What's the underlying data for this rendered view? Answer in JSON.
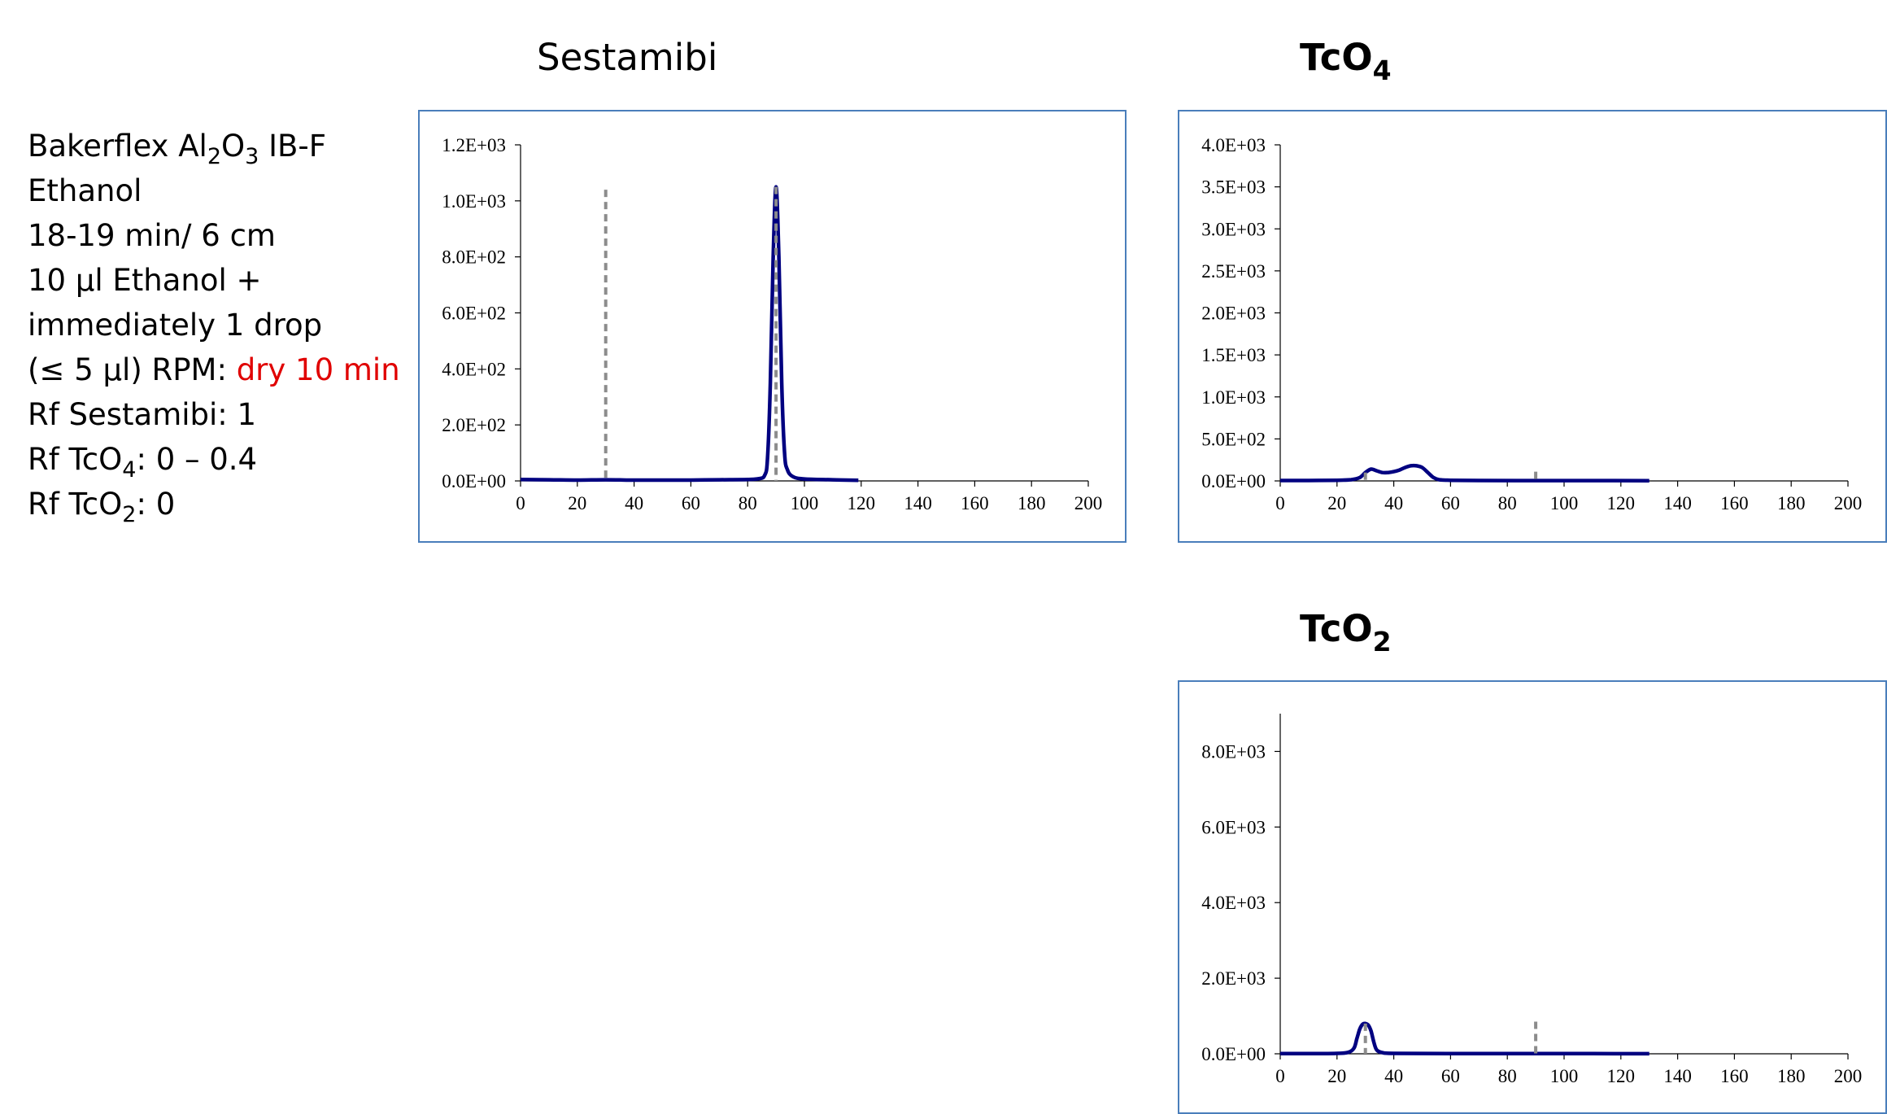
{
  "notes": {
    "line1_a": "Bakerflex Al",
    "line1_sub1": "2",
    "line1_b": "O",
    "line1_sub2": "3",
    "line1_c": " IB-F",
    "line2": "Ethanol",
    "line3": "18-19 min/ 6 cm",
    "line4": "10 µl Ethanol +",
    "line5": "immediately  1 drop",
    "line6_a": "(≤ 5 µl) RPM:  ",
    "line6_red": "dry 10 min",
    "line7": "Rf Sestamibi: 1",
    "line8_a": "Rf TcO",
    "line8_sub": "4",
    "line8_b": ": 0 – 0.4",
    "line9_a": "Rf TcO",
    "line9_sub": "2",
    "line9_b": ": 0"
  },
  "titles": {
    "sestamibi": "Sestamibi",
    "tco4_main": "TcO",
    "tco4_sub": "4",
    "tco2_main": "TcO",
    "tco2_sub": "2"
  },
  "colors": {
    "series": "#000080",
    "marker": "#8c8c8c",
    "frame": "#4a7ebb",
    "note_red": "#e00000"
  },
  "chart_data": [
    {
      "id": "sestamibi",
      "type": "line",
      "title": "Sestamibi",
      "xlim": [
        0,
        200
      ],
      "ylim": [
        0,
        1200
      ],
      "xticks": [
        0,
        20,
        40,
        60,
        80,
        100,
        120,
        140,
        160,
        180,
        200
      ],
      "xtick_labels": [
        "0",
        "20",
        "40",
        "60",
        "80",
        "100",
        "120",
        "140",
        "160",
        "180",
        "200"
      ],
      "yticks": [
        0,
        200,
        400,
        600,
        800,
        1000,
        1200
      ],
      "ytick_labels": [
        "0.0E+00",
        "2.0E+02",
        "4.0E+02",
        "6.0E+02",
        "8.0E+02",
        "1.0E+03",
        "1.2E+03"
      ],
      "series": [
        {
          "x": [
            0,
            10,
            20,
            30,
            40,
            50,
            60,
            70,
            80,
            84,
            86,
            87,
            88,
            89,
            90,
            91,
            92,
            93,
            94,
            96,
            100,
            110,
            119
          ],
          "y": [
            5,
            4,
            3,
            4,
            3,
            3,
            3,
            4,
            5,
            8,
            20,
            80,
            350,
            800,
            1050,
            800,
            350,
            100,
            40,
            15,
            7,
            4,
            2
          ]
        }
      ],
      "markers": [
        {
          "x": 30,
          "y_top": 1040
        },
        {
          "x": 90,
          "y_top": 1050
        }
      ]
    },
    {
      "id": "tco4",
      "type": "line",
      "title": "TcO4",
      "xlim": [
        0,
        200
      ],
      "ylim": [
        0,
        4000
      ],
      "xticks": [
        0,
        20,
        40,
        60,
        80,
        100,
        120,
        140,
        160,
        180,
        200
      ],
      "xtick_labels": [
        "0",
        "20",
        "40",
        "60",
        "80",
        "100",
        "120",
        "140",
        "160",
        "180",
        "200"
      ],
      "yticks": [
        0,
        500,
        1000,
        1500,
        2000,
        2500,
        3000,
        3500,
        4000
      ],
      "ytick_labels": [
        "0.0E+00",
        "5.0E+02",
        "1.0E+03",
        "1.5E+03",
        "2.0E+03",
        "2.5E+03",
        "3.0E+03",
        "3.5E+03",
        "4.0E+03"
      ],
      "series": [
        {
          "x": [
            0,
            10,
            20,
            25,
            28,
            30,
            32,
            34,
            36,
            38,
            40,
            42,
            44,
            46,
            48,
            50,
            52,
            54,
            56,
            60,
            70,
            90,
            110,
            130
          ],
          "y": [
            5,
            5,
            8,
            15,
            40,
            100,
            140,
            120,
            100,
            100,
            110,
            130,
            160,
            180,
            180,
            160,
            100,
            40,
            15,
            8,
            5,
            4,
            4,
            3
          ]
        }
      ],
      "markers": [
        {
          "x": 30,
          "y_top": 100
        },
        {
          "x": 90,
          "y_top": 110
        }
      ]
    },
    {
      "id": "tco2",
      "type": "line",
      "title": "TcO2",
      "xlim": [
        0,
        200
      ],
      "ylim": [
        0,
        9000
      ],
      "xticks": [
        0,
        20,
        40,
        60,
        80,
        100,
        120,
        140,
        160,
        180,
        200
      ],
      "xtick_labels": [
        "0",
        "20",
        "40",
        "60",
        "80",
        "100",
        "120",
        "140",
        "160",
        "180",
        "200"
      ],
      "yticks": [
        0,
        2000,
        4000,
        6000,
        8000
      ],
      "ytick_labels": [
        "0.0E+00",
        "2.0E+03",
        "4.0E+03",
        "6.0E+03",
        "8.0E+03"
      ],
      "series": [
        {
          "x": [
            0,
            10,
            20,
            24,
            26,
            27,
            28,
            29,
            30,
            31,
            32,
            33,
            34,
            36,
            40,
            60,
            90,
            110,
            130
          ],
          "y": [
            5,
            5,
            10,
            40,
            150,
            400,
            650,
            780,
            800,
            760,
            600,
            300,
            100,
            30,
            10,
            5,
            5,
            4,
            3
          ]
        }
      ],
      "markers": [
        {
          "x": 30,
          "y_top": 800
        },
        {
          "x": 90,
          "y_top": 850
        }
      ]
    }
  ]
}
